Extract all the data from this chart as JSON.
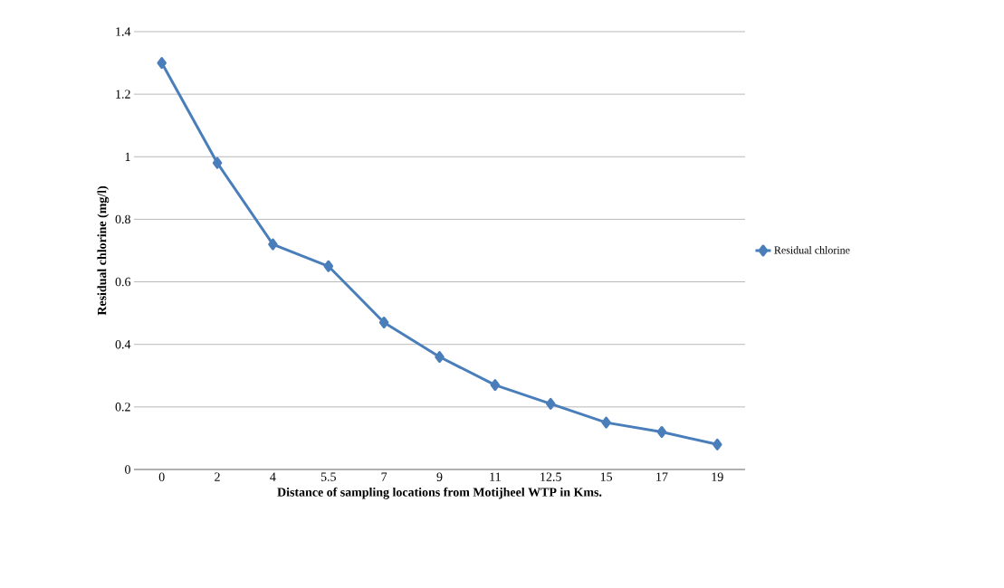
{
  "chart_data": {
    "type": "line",
    "xlabel": "Distance of sampling locations from Motijheel WTP in Kms.",
    "ylabel": "Residual chlorine (mg/l)",
    "categories": [
      "0",
      "2",
      "4",
      "5.5",
      "7",
      "9",
      "11",
      "12.5",
      "15",
      "17",
      "19"
    ],
    "series": [
      {
        "name": "Residual chlorine",
        "color": "#4a7ebb",
        "values": [
          1.3,
          0.98,
          0.72,
          0.65,
          0.47,
          0.36,
          0.27,
          0.21,
          0.15,
          0.12,
          0.08
        ]
      }
    ],
    "ylim": [
      0,
      1.4
    ],
    "yticks": [
      0,
      0.2,
      0.4,
      0.6,
      0.8,
      1,
      1.2,
      1.4
    ],
    "grid": "y",
    "legend": "right",
    "marker": "diamond",
    "line_style": "solid"
  }
}
